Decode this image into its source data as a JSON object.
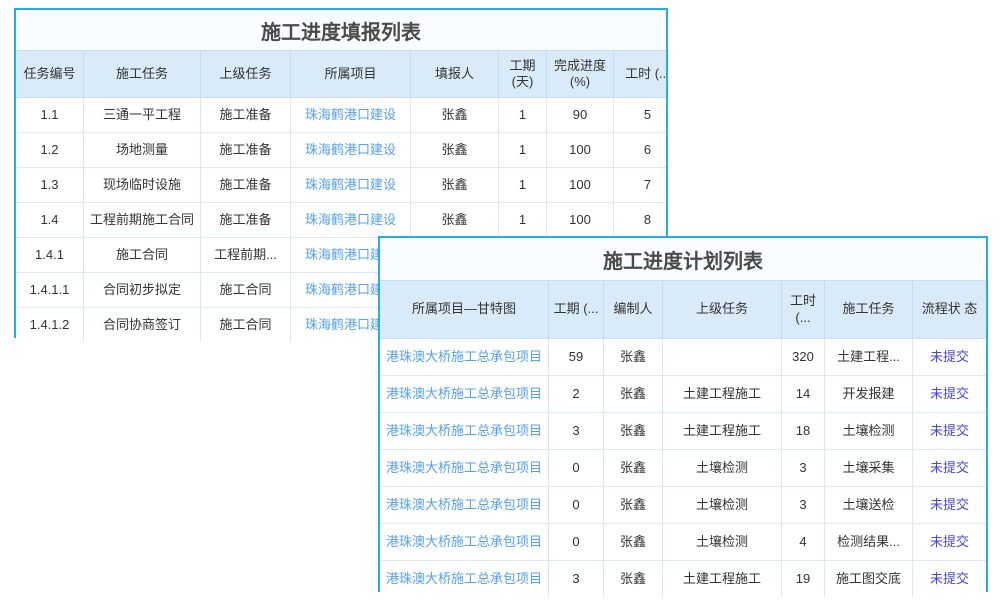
{
  "colors": {
    "panel_border": "#28aedd",
    "header_bg": "#d9eaf8",
    "header_text": "#4081ba",
    "body_text": "#333333",
    "link_text": "#55a0ef",
    "status_text": "#4646e6",
    "title_text": "#4a4a4a"
  },
  "report_table": {
    "title": "施工进度填报列表",
    "columns": [
      "任务编号",
      "施工任务",
      "上级任务",
      "所属项目",
      "填报人",
      "工期 (天)",
      "完成进度 (%)",
      "工时 (..."
    ],
    "rows": [
      {
        "cells": [
          "1.1",
          "三通一平工程",
          "施工准备",
          "珠海鹤港口建设",
          "张鑫",
          "1",
          "90",
          "5"
        ]
      },
      {
        "cells": [
          "1.2",
          "场地测量",
          "施工准备",
          "珠海鹤港口建设",
          "张鑫",
          "1",
          "100",
          "6"
        ]
      },
      {
        "cells": [
          "1.3",
          "现场临时设施",
          "施工准备",
          "珠海鹤港口建设",
          "张鑫",
          "1",
          "100",
          "7"
        ]
      },
      {
        "cells": [
          "1.4",
          "工程前期施工合同",
          "施工准备",
          "珠海鹤港口建设",
          "张鑫",
          "1",
          "100",
          "8"
        ]
      },
      {
        "cells": [
          "1.4.1",
          "施工合同",
          "工程前期...",
          "珠海鹤港口建设",
          "",
          "",
          "",
          ""
        ]
      },
      {
        "cells": [
          "1.4.1.1",
          "合同初步拟定",
          "施工合同",
          "珠海鹤港口建设",
          "",
          "",
          "",
          ""
        ]
      },
      {
        "cells": [
          "1.4.1.2",
          "合同协商签订",
          "施工合同",
          "珠海鹤港口建设",
          "",
          "",
          "",
          ""
        ]
      }
    ]
  },
  "plan_table": {
    "title": "施工进度计划列表",
    "columns": [
      "所属项目—甘特图",
      "工期 (...",
      "编制人",
      "上级任务",
      "工时 (...",
      "施工任务",
      "流程状 态"
    ],
    "rows": [
      {
        "cells": [
          "港珠澳大桥施工总承包项目",
          "59",
          "张鑫",
          "",
          "320",
          "土建工程...",
          "未提交"
        ]
      },
      {
        "cells": [
          "港珠澳大桥施工总承包项目",
          "2",
          "张鑫",
          "土建工程施工",
          "14",
          "开发报建",
          "未提交"
        ]
      },
      {
        "cells": [
          "港珠澳大桥施工总承包项目",
          "3",
          "张鑫",
          "土建工程施工",
          "18",
          "土壤检测",
          "未提交"
        ]
      },
      {
        "cells": [
          "港珠澳大桥施工总承包项目",
          "0",
          "张鑫",
          "土壤检测",
          "3",
          "土壤采集",
          "未提交"
        ]
      },
      {
        "cells": [
          "港珠澳大桥施工总承包项目",
          "0",
          "张鑫",
          "土壤检测",
          "3",
          "土壤送检",
          "未提交"
        ]
      },
      {
        "cells": [
          "港珠澳大桥施工总承包项目",
          "0",
          "张鑫",
          "土壤检测",
          "4",
          "检测结果...",
          "未提交"
        ]
      },
      {
        "cells": [
          "港珠澳大桥施工总承包项目",
          "3",
          "张鑫",
          "土建工程施工",
          "19",
          "施工图交底",
          "未提交"
        ]
      }
    ]
  }
}
